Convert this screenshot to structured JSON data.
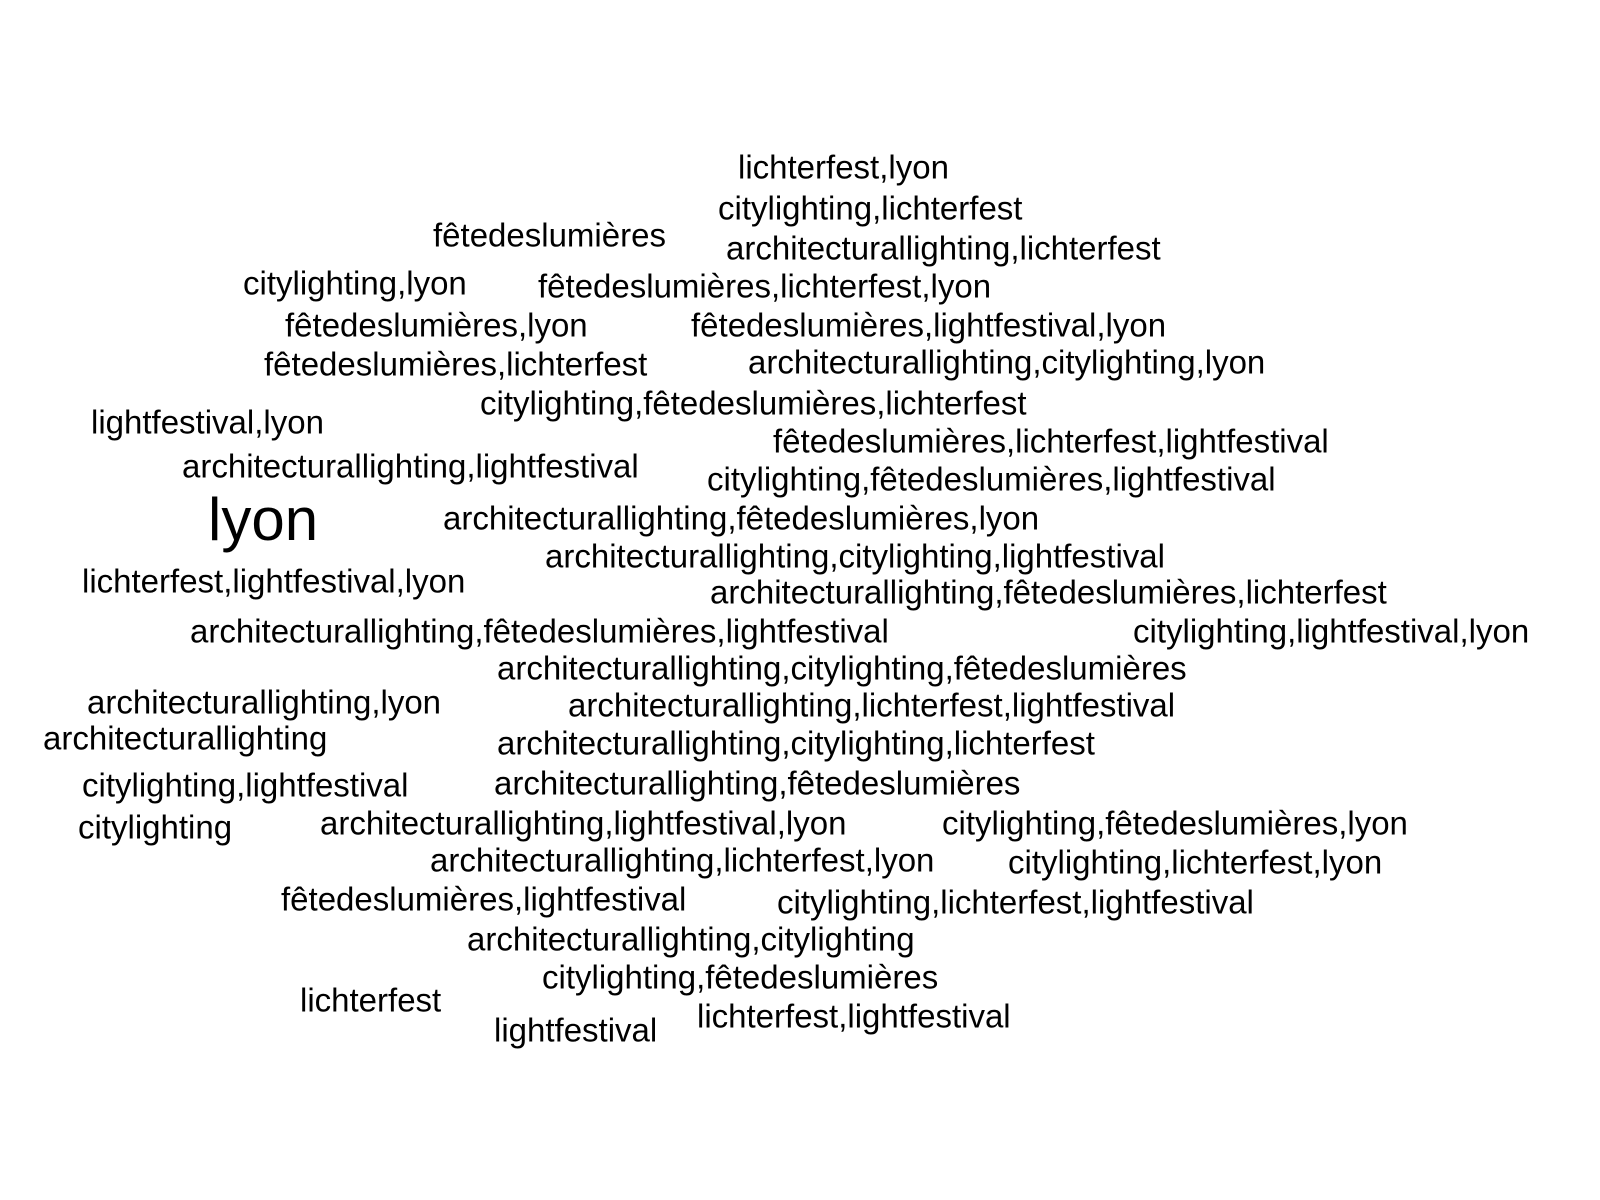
{
  "words": [
    {
      "text": "lichterfest,lyon",
      "weight": 1
    },
    {
      "text": "citylighting,lichterfest",
      "weight": 1
    },
    {
      "text": "fêtedeslumières",
      "weight": 1
    },
    {
      "text": "architecturallighting,lichterfest",
      "weight": 1
    },
    {
      "text": "citylighting,lyon",
      "weight": 1
    },
    {
      "text": "fêtedeslumières,lichterfest,lyon",
      "weight": 1
    },
    {
      "text": "fêtedeslumières,lyon",
      "weight": 1
    },
    {
      "text": "fêtedeslumières,lightfestival,lyon",
      "weight": 1
    },
    {
      "text": "fêtedeslumières,lichterfest",
      "weight": 1
    },
    {
      "text": "architecturallighting,citylighting,lyon",
      "weight": 1
    },
    {
      "text": "citylighting,fêtedeslumières,lichterfest",
      "weight": 1
    },
    {
      "text": "lightfestival,lyon",
      "weight": 1
    },
    {
      "text": "fêtedeslumières,lichterfest,lightfestival",
      "weight": 1
    },
    {
      "text": "architecturallighting,lightfestival",
      "weight": 1
    },
    {
      "text": "citylighting,fêtedeslumières,lightfestival",
      "weight": 1
    },
    {
      "text": "lyon",
      "weight": 2
    },
    {
      "text": "architecturallighting,fêtedeslumières,lyon",
      "weight": 1
    },
    {
      "text": "architecturallighting,citylighting,lightfestival",
      "weight": 1
    },
    {
      "text": "lichterfest,lightfestival,lyon",
      "weight": 1
    },
    {
      "text": "architecturallighting,fêtedeslumières,lichterfest",
      "weight": 1
    },
    {
      "text": "architecturallighting,fêtedeslumières,lightfestival",
      "weight": 1
    },
    {
      "text": "citylighting,lightfestival,lyon",
      "weight": 1
    },
    {
      "text": "architecturallighting,citylighting,fêtedeslumières",
      "weight": 1
    },
    {
      "text": "architecturallighting,lyon",
      "weight": 1
    },
    {
      "text": "architecturallighting,lichterfest,lightfestival",
      "weight": 1
    },
    {
      "text": "architecturallighting",
      "weight": 1
    },
    {
      "text": "architecturallighting,citylighting,lichterfest",
      "weight": 1
    },
    {
      "text": "citylighting,lightfestival",
      "weight": 1
    },
    {
      "text": "architecturallighting,fêtedeslumières",
      "weight": 1
    },
    {
      "text": "citylighting",
      "weight": 1
    },
    {
      "text": "architecturallighting,lightfestival,lyon",
      "weight": 1
    },
    {
      "text": "citylighting,fêtedeslumières,lyon",
      "weight": 1
    },
    {
      "text": "architecturallighting,lichterfest,lyon",
      "weight": 1
    },
    {
      "text": "citylighting,lichterfest,lyon",
      "weight": 1
    },
    {
      "text": "fêtedeslumières,lightfestival",
      "weight": 1
    },
    {
      "text": "citylighting,lichterfest,lightfestival",
      "weight": 1
    },
    {
      "text": "architecturallighting,citylighting",
      "weight": 1
    },
    {
      "text": "citylighting,fêtedeslumières",
      "weight": 1
    },
    {
      "text": "lichterfest",
      "weight": 1
    },
    {
      "text": "lichterfest,lightfestival",
      "weight": 1
    },
    {
      "text": "lightfestival",
      "weight": 1
    }
  ]
}
